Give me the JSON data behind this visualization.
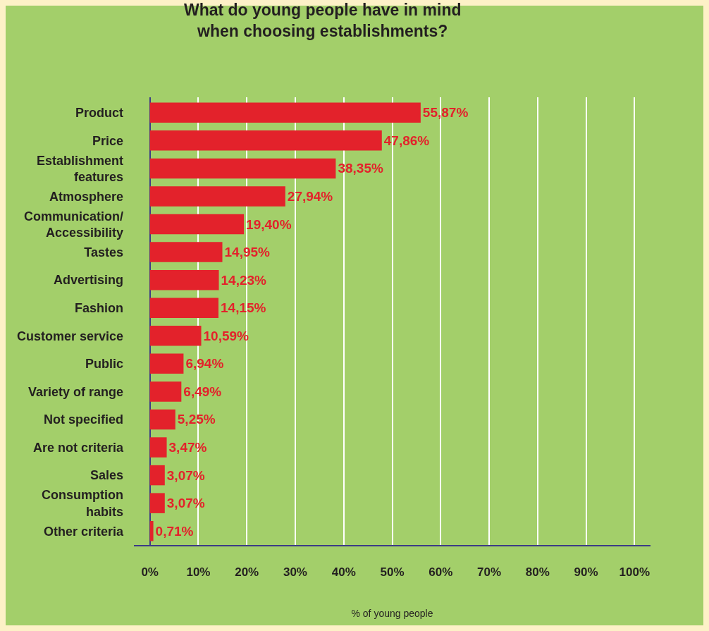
{
  "chart_data": {
    "type": "bar",
    "orientation": "horizontal",
    "title": "What do young people have in mind\nwhen choosing establishments?",
    "xlabel": "% of young people",
    "categories": [
      "Product",
      "Price",
      "Establishment\nfeatures",
      "Atmosphere",
      "Communication/\nAccessibility",
      "Tastes",
      "Advertising",
      "Fashion",
      "Customer service",
      "Public",
      "Variety of range",
      "Not specified",
      "Are not criteria",
      "Sales",
      "Consumption\nhabits",
      "Other criteria"
    ],
    "values": [
      55.87,
      47.86,
      38.35,
      27.94,
      19.4,
      14.95,
      14.23,
      14.15,
      10.59,
      6.94,
      6.49,
      5.25,
      3.47,
      3.07,
      3.07,
      0.71
    ],
    "value_labels": [
      "55,87%",
      "47,86%",
      "38,35%",
      "27,94%",
      "19,40%",
      "14,95%",
      "14,23%",
      "14,15%",
      "10,59%",
      "6,94%",
      "6,49%",
      "5,25%",
      "3,47%",
      "3,07%",
      "3,07%",
      "0,71%"
    ],
    "color": "#e3222b",
    "xlim": [
      -3.3,
      103.3
    ],
    "xticks": [
      {
        "value": 0,
        "label": "0%"
      },
      {
        "value": 10,
        "label": "10%"
      },
      {
        "value": 20,
        "label": "20%"
      },
      {
        "value": 30,
        "label": "30%"
      },
      {
        "value": 40,
        "label": "40%"
      },
      {
        "value": 50,
        "label": "50%"
      },
      {
        "value": 60,
        "label": "60%"
      },
      {
        "value": 70,
        "label": "70%"
      },
      {
        "value": 80,
        "label": "80%"
      },
      {
        "value": 90,
        "label": "90%"
      },
      {
        "value": 100,
        "label": "100%"
      }
    ],
    "grid": "x",
    "legend": false
  }
}
